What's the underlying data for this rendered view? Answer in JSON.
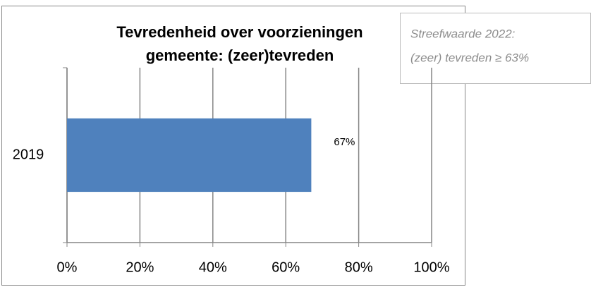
{
  "chart_data": {
    "type": "barh",
    "title": [
      "Tevredenheid over voorzieningen",
      "gemeente: (zeer)tevreden"
    ],
    "annotation": [
      "Streefwaarde 2022:",
      "(zeer) tevreden ≥ 63%"
    ],
    "categories": [
      "2019"
    ],
    "values": [
      67
    ],
    "value_labels": [
      "67%"
    ],
    "color": "#4f81bd",
    "xlim": [
      0,
      100
    ],
    "xticks": [
      {
        "value": 0,
        "label": "0%"
      },
      {
        "value": 20,
        "label": "20%"
      },
      {
        "value": 40,
        "label": "40%"
      },
      {
        "value": 60,
        "label": "60%"
      },
      {
        "value": 80,
        "label": "80%"
      },
      {
        "value": 100,
        "label": "100%"
      }
    ],
    "grid": true
  }
}
